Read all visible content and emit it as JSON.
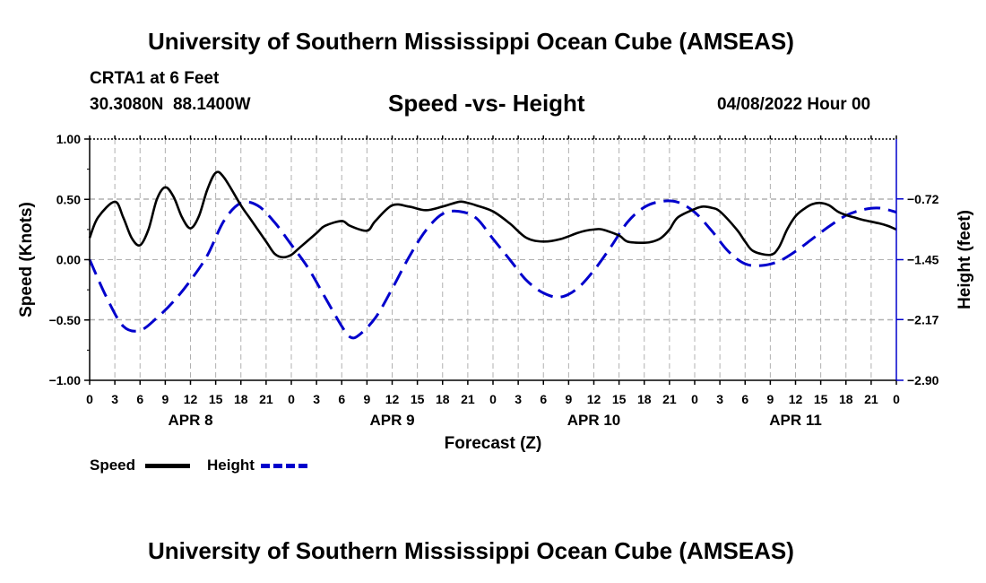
{
  "header": {
    "title": "University of Southern Mississippi Ocean Cube (AMSEAS)",
    "station": "CRTA1 at 6 Feet",
    "coords": "30.3080N  88.1400W",
    "subtitle": "Speed -vs- Height",
    "datetime": "04/08/2022 Hour 00"
  },
  "footer": {
    "title": "University of Southern Mississippi Ocean Cube (AMSEAS)"
  },
  "legend": [
    {
      "label": "Speed",
      "color": "#000000",
      "style": "solid"
    },
    {
      "label": "Height",
      "color": "#0000cc",
      "style": "dashed"
    }
  ],
  "chart_data": {
    "type": "line",
    "title": "Speed -vs- Height",
    "xlabel": "Forecast (Z)",
    "ylabel_left": "Speed (Knots)",
    "ylabel_right": "Height (feet)",
    "x_range_hours": [
      0,
      96
    ],
    "x_tick_step_hours": 3,
    "x_tick_labels": [
      "0",
      "3",
      "6",
      "9",
      "12",
      "15",
      "18",
      "21",
      "0",
      "3",
      "6",
      "9",
      "12",
      "15",
      "18",
      "21",
      "0",
      "3",
      "6",
      "9",
      "12",
      "15",
      "18",
      "21",
      "0",
      "3",
      "6",
      "9",
      "12",
      "15",
      "18",
      "21",
      "0"
    ],
    "day_labels": [
      {
        "label": "APR 8",
        "hour": 12
      },
      {
        "label": "APR 9",
        "hour": 36
      },
      {
        "label": "APR 10",
        "hour": 60
      },
      {
        "label": "APR 11",
        "hour": 84
      }
    ],
    "y_left": {
      "range": [
        -1.0,
        1.0
      ],
      "ticks": [
        -1.0,
        -0.5,
        0.0,
        0.5,
        1.0
      ],
      "tick_labels": [
        "−1.00",
        "−0.50",
        "0.00",
        "0.50",
        "1.00"
      ]
    },
    "y_right": {
      "range": [
        -2.9,
        0.0
      ],
      "ticks": [
        -2.9,
        -2.17,
        -1.45,
        -0.72
      ],
      "tick_labels": [
        "−2.90",
        "−2.17",
        "−1.45",
        "−0.72"
      ]
    },
    "grid": true,
    "series": [
      {
        "name": "Speed",
        "axis": "left",
        "color": "#000000",
        "dashed": false,
        "x": [
          0,
          1,
          3,
          4,
          5,
          6,
          7,
          8,
          9,
          10,
          11,
          12,
          13,
          14,
          15,
          16,
          18,
          19,
          21,
          22,
          23,
          24,
          25,
          27,
          28,
          30,
          31,
          33,
          34,
          36,
          38,
          40,
          42,
          44,
          45,
          46,
          48,
          50,
          52,
          54,
          56,
          58,
          59,
          60,
          61,
          63,
          64,
          66,
          67,
          68,
          69,
          70,
          72,
          73,
          74,
          75,
          77,
          78,
          79,
          81,
          82,
          83,
          84,
          85,
          86,
          87,
          88,
          89,
          90,
          91,
          92,
          94,
          95,
          96
        ],
        "y": [
          0.18,
          0.35,
          0.48,
          0.35,
          0.18,
          0.12,
          0.25,
          0.5,
          0.6,
          0.52,
          0.35,
          0.26,
          0.36,
          0.58,
          0.72,
          0.68,
          0.45,
          0.35,
          0.15,
          0.05,
          0.02,
          0.04,
          0.1,
          0.22,
          0.28,
          0.32,
          0.28,
          0.24,
          0.32,
          0.45,
          0.44,
          0.41,
          0.44,
          0.48,
          0.47,
          0.45,
          0.4,
          0.3,
          0.18,
          0.15,
          0.17,
          0.22,
          0.24,
          0.25,
          0.25,
          0.2,
          0.15,
          0.14,
          0.15,
          0.18,
          0.25,
          0.35,
          0.42,
          0.44,
          0.43,
          0.4,
          0.25,
          0.15,
          0.07,
          0.04,
          0.1,
          0.25,
          0.36,
          0.42,
          0.46,
          0.47,
          0.45,
          0.4,
          0.37,
          0.35,
          0.33,
          0.3,
          0.28,
          0.25
        ]
      },
      {
        "name": "Height",
        "axis": "right",
        "color": "#0000cc",
        "dashed": true,
        "x": [
          0,
          2,
          4,
          6,
          8,
          10,
          12,
          14,
          16,
          18,
          20,
          22,
          24,
          26,
          28,
          30,
          31,
          32,
          34,
          36,
          38,
          40,
          42,
          44,
          46,
          48,
          50,
          52,
          54,
          56,
          58,
          60,
          62,
          64,
          66,
          68,
          70,
          72,
          74,
          76,
          78,
          80,
          82,
          84,
          86,
          88,
          90,
          92,
          94,
          96
        ],
        "y": [
          -1.45,
          -1.9,
          -2.25,
          -2.3,
          -2.15,
          -1.95,
          -1.7,
          -1.4,
          -0.98,
          -0.77,
          -0.8,
          -1.0,
          -1.27,
          -1.55,
          -1.9,
          -2.25,
          -2.38,
          -2.36,
          -2.15,
          -1.8,
          -1.42,
          -1.1,
          -0.9,
          -0.87,
          -0.95,
          -1.2,
          -1.45,
          -1.7,
          -1.85,
          -1.9,
          -1.8,
          -1.58,
          -1.3,
          -1.0,
          -0.82,
          -0.75,
          -0.76,
          -0.88,
          -1.1,
          -1.35,
          -1.5,
          -1.52,
          -1.47,
          -1.35,
          -1.2,
          -1.05,
          -0.92,
          -0.85,
          -0.83,
          -0.88
        ]
      }
    ]
  }
}
